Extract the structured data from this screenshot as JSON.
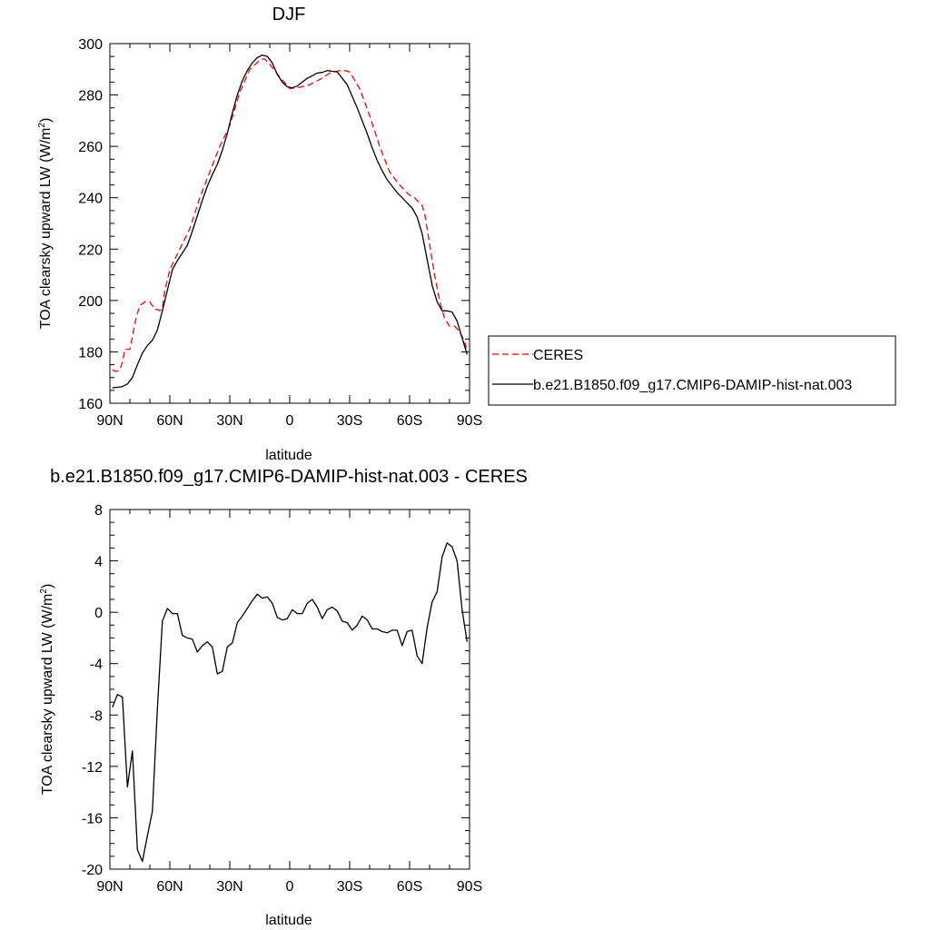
{
  "chart_data": [
    {
      "type": "line",
      "title": "DJF",
      "xlabel": "latitude",
      "ylabel": "TOA clearsky upward LW (W/m",
      "ylabel_sup": "2",
      "ylabel_tail": ")",
      "xlim": [
        90,
        -90
      ],
      "ylim": [
        160,
        300
      ],
      "x_ticks": [
        90,
        60,
        30,
        0,
        -30,
        -60,
        -90
      ],
      "x_tick_labels": [
        "90N",
        "60N",
        "30N",
        "0",
        "30S",
        "60S",
        "90S"
      ],
      "y_ticks": [
        160,
        180,
        200,
        220,
        240,
        260,
        280,
        300
      ],
      "y_tick_labels": [
        "160",
        "180",
        "200",
        "220",
        "240",
        "260",
        "280",
        "300"
      ],
      "grid": false,
      "legend_position": "right",
      "series": [
        {
          "name": "CERES",
          "color": "#ff0000",
          "dash": "dashed",
          "x": [
            88.75,
            87.5,
            86.25,
            85,
            83.75,
            82.5,
            81.25,
            80,
            78.75,
            77.5,
            76.25,
            75,
            72.5,
            71.25,
            70,
            68.75,
            67.5,
            66.25,
            65,
            63.75,
            62.5,
            60,
            55,
            50,
            45,
            40,
            35,
            30,
            25,
            20,
            15,
            13.75,
            12.5,
            10,
            5,
            0,
            -5,
            -10,
            -15,
            -20,
            -25,
            -27.5,
            -30,
            -35,
            -40,
            -45,
            -50,
            -55,
            -60,
            -62.5,
            -65,
            -66.25,
            -67.5,
            -68.75,
            -70,
            -72.5,
            -75,
            -77.5,
            -80,
            -82.5,
            -85,
            -87.5,
            -89
          ],
          "y": [
            173,
            172.5,
            172.5,
            173,
            176,
            181,
            181,
            181,
            186,
            191,
            195,
            198,
            199.5,
            199.5,
            199.5,
            198,
            196.5,
            196.5,
            196,
            197,
            204,
            212,
            220,
            228,
            240,
            250,
            260,
            268,
            281,
            290,
            293.5,
            294,
            294,
            292,
            287,
            282.5,
            283,
            284,
            286,
            288.5,
            289.5,
            289.5,
            289,
            282.5,
            272,
            260,
            250,
            245,
            241,
            240,
            238,
            237,
            234,
            228,
            222,
            210,
            200,
            193,
            190,
            190,
            188,
            184,
            180
          ]
        },
        {
          "name": "b.e21.B1850.f09_g17.CMIP6-DAMIP-hist-nat.003",
          "color": "#000000",
          "dash": "solid",
          "x": [
            88.75,
            86.25,
            83.75,
            81.25,
            78.75,
            76.25,
            73.75,
            71.25,
            68.75,
            66.25,
            63.75,
            61.25,
            58.75,
            56.25,
            53.75,
            51.25,
            48.75,
            46.25,
            43.75,
            41.25,
            38.75,
            36.25,
            33.75,
            31.25,
            28.75,
            26.25,
            23.75,
            21.25,
            18.75,
            16.25,
            13.75,
            11.25,
            8.75,
            6.25,
            3.75,
            1.25,
            -1.25,
            -3.75,
            -6.25,
            -8.75,
            -11.25,
            -13.75,
            -16.25,
            -18.75,
            -21.25,
            -23.75,
            -26.25,
            -28.75,
            -31.25,
            -33.75,
            -36.25,
            -38.75,
            -41.25,
            -43.75,
            -46.25,
            -48.75,
            -51.25,
            -53.75,
            -56.25,
            -58.75,
            -61.25,
            -63.75,
            -66.25,
            -68.75,
            -71.25,
            -73.75,
            -76.25,
            -78.75,
            -81.25,
            -83.75,
            -86.25,
            -88.75
          ],
          "y": [
            166,
            166.2,
            166.5,
            167.5,
            170,
            175,
            179.5,
            182.5,
            184.5,
            188.5,
            196,
            204,
            212,
            215.5,
            218.5,
            221.5,
            227,
            233,
            239,
            244.5,
            249,
            253,
            258.5,
            265,
            273,
            280,
            285.5,
            289.5,
            292.5,
            294.5,
            295.5,
            295,
            292.5,
            288,
            285,
            283.2,
            282.8,
            283.5,
            285,
            286.5,
            287.5,
            288.5,
            288.8,
            289.5,
            289.2,
            289,
            286.5,
            284,
            279.5,
            275,
            270,
            265,
            259.5,
            254.5,
            250.5,
            247,
            244.5,
            242,
            240,
            238,
            236,
            232.5,
            226,
            216,
            206,
            199.5,
            196,
            196,
            195.5,
            192,
            185.5,
            179
          ]
        }
      ]
    },
    {
      "type": "line",
      "title": "b.e21.B1850.f09_g17.CMIP6-DAMIP-hist-nat.003 - CERES",
      "xlabel": "latitude",
      "ylabel": "TOA clearsky upward LW (W/m",
      "ylabel_sup": "2",
      "ylabel_tail": ")",
      "xlim": [
        90,
        -90
      ],
      "ylim": [
        -20,
        8
      ],
      "x_ticks": [
        90,
        60,
        30,
        0,
        -30,
        -60,
        -90
      ],
      "x_tick_labels": [
        "90N",
        "60N",
        "30N",
        "0",
        "30S",
        "60S",
        "90S"
      ],
      "y_ticks": [
        -20,
        -16,
        -12,
        -8,
        -4,
        0,
        4,
        8
      ],
      "y_tick_labels": [
        "-20",
        "-16",
        "-12",
        "-8",
        "-4",
        "0",
        "4",
        "8"
      ],
      "grid": false,
      "series": [
        {
          "color": "#000000",
          "dash": "solid",
          "x": [
            88.75,
            86.25,
            83.75,
            81.25,
            78.75,
            76.25,
            73.75,
            71.25,
            68.75,
            66.25,
            63.75,
            61.25,
            58.75,
            56.25,
            53.75,
            51.25,
            48.75,
            46.25,
            43.75,
            41.25,
            38.75,
            36.25,
            33.75,
            31.25,
            28.75,
            26.25,
            23.75,
            21.25,
            18.75,
            16.25,
            13.75,
            11.25,
            8.75,
            6.25,
            3.75,
            1.25,
            -1.25,
            -3.75,
            -6.25,
            -8.75,
            -11.25,
            -13.75,
            -16.25,
            -18.75,
            -21.25,
            -23.75,
            -26.25,
            -28.75,
            -31.25,
            -33.75,
            -36.25,
            -38.75,
            -41.25,
            -43.75,
            -46.25,
            -48.75,
            -51.25,
            -53.75,
            -56.25,
            -58.75,
            -61.25,
            -63.75,
            -66.25,
            -68.75,
            -71.25,
            -73.75,
            -76.25,
            -78.75,
            -81.25,
            -83.75,
            -86.25,
            -88.75
          ],
          "y": [
            -7.4,
            -6.4,
            -6.6,
            -13.6,
            -10.8,
            -18.5,
            -19.4,
            -17.4,
            -15.5,
            -7.5,
            -0.7,
            0.3,
            -0.1,
            -0.1,
            -1.8,
            -2.0,
            -2.1,
            -3.1,
            -2.6,
            -2.3,
            -2.7,
            -4.8,
            -4.6,
            -2.7,
            -2.4,
            -0.8,
            -0.3,
            0.3,
            0.9,
            1.4,
            1.1,
            1.2,
            0.7,
            -0.4,
            -0.6,
            -0.5,
            0.2,
            -0.1,
            -0.1,
            0.7,
            1.0,
            0.4,
            -0.5,
            0.2,
            0.4,
            0.1,
            -0.7,
            -0.8,
            -1.4,
            -1.0,
            -0.3,
            -0.6,
            -1.3,
            -1.3,
            -1.5,
            -1.6,
            -1.4,
            -1.4,
            -2.6,
            -1.5,
            -1.4,
            -3.4,
            -4.0,
            -1.2,
            0.8,
            1.6,
            4.3,
            5.4,
            5.1,
            4.0,
            0.2,
            -2.3
          ]
        }
      ]
    }
  ]
}
